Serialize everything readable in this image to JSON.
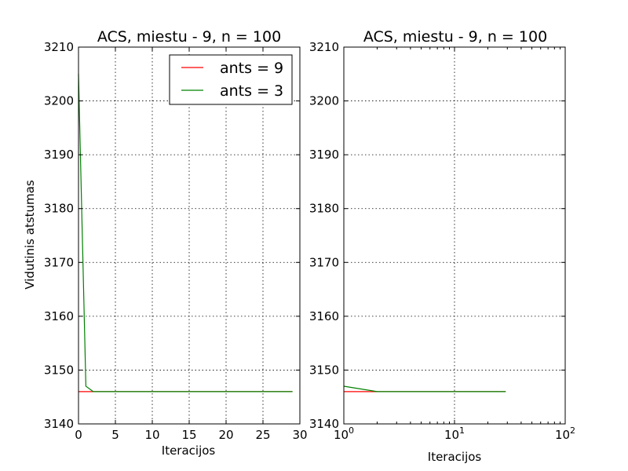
{
  "chart_data": [
    {
      "type": "line",
      "title": "ACS, miestu - 9, n = 100",
      "xlabel": "Iteracijos",
      "ylabel": "Vidutinis atstumas",
      "xscale": "linear",
      "xlim": [
        0,
        30
      ],
      "ylim": [
        3140,
        3210
      ],
      "xticks": [
        0,
        5,
        10,
        15,
        20,
        25,
        30
      ],
      "yticks": [
        3140,
        3150,
        3160,
        3170,
        3180,
        3190,
        3200,
        3210
      ],
      "grid": true,
      "legend": "top-right",
      "series": [
        {
          "name": "ants = 9",
          "color": "#ff0000",
          "x": [
            0,
            1,
            2,
            3,
            4,
            5,
            6,
            7,
            8,
            9,
            10,
            11,
            12,
            13,
            14,
            15,
            16,
            17,
            18,
            19,
            20,
            21,
            22,
            23,
            24,
            25,
            26,
            27,
            28,
            29
          ],
          "y": [
            3146,
            3146,
            3146,
            3146,
            3146,
            3146,
            3146,
            3146,
            3146,
            3146,
            3146,
            3146,
            3146,
            3146,
            3146,
            3146,
            3146,
            3146,
            3146,
            3146,
            3146,
            3146,
            3146,
            3146,
            3146,
            3146,
            3146,
            3146,
            3146,
            3146
          ]
        },
        {
          "name": "ants = 3",
          "color": "#008000",
          "x": [
            0,
            1,
            2,
            3,
            4,
            5,
            6,
            7,
            8,
            9,
            10,
            11,
            12,
            13,
            14,
            15,
            16,
            17,
            18,
            19,
            20,
            21,
            22,
            23,
            24,
            25,
            26,
            27,
            28,
            29
          ],
          "y": [
            3205,
            3147,
            3146,
            3146,
            3146,
            3146,
            3146,
            3146,
            3146,
            3146,
            3146,
            3146,
            3146,
            3146,
            3146,
            3146,
            3146,
            3146,
            3146,
            3146,
            3146,
            3146,
            3146,
            3146,
            3146,
            3146,
            3146,
            3146,
            3146,
            3146
          ]
        }
      ]
    },
    {
      "type": "line",
      "title": "ACS, miestu - 9, n = 100",
      "xlabel": "Iteracijos",
      "ylabel": "",
      "xscale": "log",
      "xlim": [
        1,
        100
      ],
      "ylim": [
        3140,
        3210
      ],
      "xticks": [
        1,
        10,
        100
      ],
      "yticks": [
        3140,
        3150,
        3160,
        3170,
        3180,
        3190,
        3200,
        3210
      ],
      "grid": true,
      "series": [
        {
          "color": "#ff0000",
          "x": [
            1,
            2,
            3,
            4,
            5,
            6,
            7,
            8,
            9,
            10,
            11,
            12,
            13,
            14,
            15,
            16,
            17,
            18,
            19,
            20,
            21,
            22,
            23,
            24,
            25,
            26,
            27,
            28,
            29
          ],
          "y": [
            3146,
            3146,
            3146,
            3146,
            3146,
            3146,
            3146,
            3146,
            3146,
            3146,
            3146,
            3146,
            3146,
            3146,
            3146,
            3146,
            3146,
            3146,
            3146,
            3146,
            3146,
            3146,
            3146,
            3146,
            3146,
            3146,
            3146,
            3146,
            3146
          ]
        },
        {
          "color": "#008000",
          "x": [
            1,
            2,
            3,
            4,
            5,
            6,
            7,
            8,
            9,
            10,
            11,
            12,
            13,
            14,
            15,
            16,
            17,
            18,
            19,
            20,
            21,
            22,
            23,
            24,
            25,
            26,
            27,
            28,
            29
          ],
          "y": [
            3147,
            3146,
            3146,
            3146,
            3146,
            3146,
            3146,
            3146,
            3146,
            3146,
            3146,
            3146,
            3146,
            3146,
            3146,
            3146,
            3146,
            3146,
            3146,
            3146,
            3146,
            3146,
            3146,
            3146,
            3146,
            3146,
            3146,
            3146,
            3146
          ]
        }
      ]
    }
  ]
}
